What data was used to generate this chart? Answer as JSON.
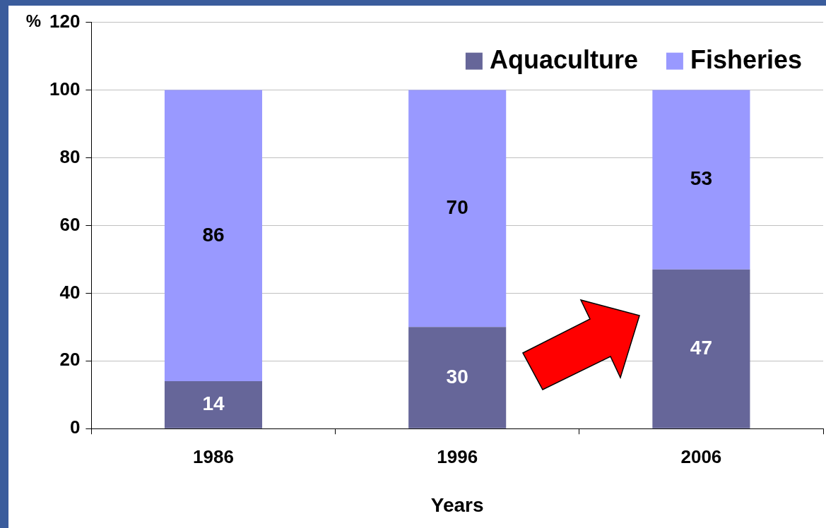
{
  "chart_data": {
    "type": "bar",
    "stacked": true,
    "xlabel": "Years",
    "ylabel": "%",
    "categories": [
      "1986",
      "1996",
      "2006"
    ],
    "series": [
      {
        "name": "Aquaculture",
        "color": "#666699",
        "values": [
          14,
          30,
          47
        ]
      },
      {
        "name": "Fisheries",
        "color": "#9999ff",
        "values": [
          86,
          70,
          53
        ]
      }
    ],
    "ylim": [
      0,
      120
    ],
    "yticks": [
      0,
      20,
      40,
      60,
      80,
      100,
      120
    ],
    "grid": "y",
    "legend": "top right",
    "data_labels": true
  }
}
